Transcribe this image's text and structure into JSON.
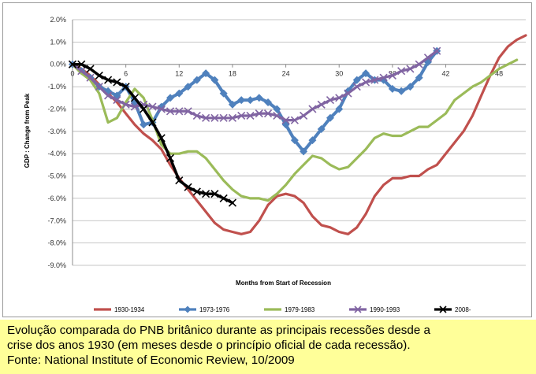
{
  "chart_data": {
    "type": "line",
    "title": "",
    "xlabel": "Months from Start of Recession",
    "ylabel": "GDP : Change from Peak",
    "xlim": [
      0,
      51
    ],
    "ylim": [
      -9,
      2
    ],
    "xticks": [
      0,
      6,
      12,
      18,
      24,
      30,
      36,
      42,
      48
    ],
    "yticks": [
      "2.0%",
      "1.0%",
      "0.0%",
      "-1.0%",
      "-2.0%",
      "-3.0%",
      "-4.0%",
      "-5.0%",
      "-6.0%",
      "-7.0%",
      "-8.0%",
      "-9.0%"
    ],
    "grid": "horizontal",
    "legend_position": "bottom",
    "series": [
      {
        "name": "1930-1934",
        "color": "#c0504d",
        "marker": "none",
        "points": [
          [
            0,
            0
          ],
          [
            1,
            -0.2
          ],
          [
            2,
            -0.5
          ],
          [
            3,
            -0.9
          ],
          [
            4,
            -1.3
          ],
          [
            5,
            -1.7
          ],
          [
            6,
            -2.2
          ],
          [
            7,
            -2.7
          ],
          [
            8,
            -3.1
          ],
          [
            9,
            -3.4
          ],
          [
            10,
            -3.8
          ],
          [
            11,
            -4.5
          ],
          [
            12,
            -5.1
          ],
          [
            13,
            -5.6
          ],
          [
            14,
            -6.1
          ],
          [
            15,
            -6.6
          ],
          [
            16,
            -7.1
          ],
          [
            17,
            -7.4
          ],
          [
            18,
            -7.5
          ],
          [
            19,
            -7.6
          ],
          [
            20,
            -7.5
          ],
          [
            21,
            -7.0
          ],
          [
            22,
            -6.3
          ],
          [
            23,
            -5.9
          ],
          [
            24,
            -5.8
          ],
          [
            25,
            -5.9
          ],
          [
            26,
            -6.2
          ],
          [
            27,
            -6.8
          ],
          [
            28,
            -7.2
          ],
          [
            29,
            -7.3
          ],
          [
            30,
            -7.5
          ],
          [
            31,
            -7.6
          ],
          [
            32,
            -7.3
          ],
          [
            33,
            -6.7
          ],
          [
            34,
            -5.9
          ],
          [
            35,
            -5.4
          ],
          [
            36,
            -5.1
          ],
          [
            37,
            -5.1
          ],
          [
            38,
            -5.0
          ],
          [
            39,
            -5.0
          ],
          [
            40,
            -4.7
          ],
          [
            41,
            -4.5
          ],
          [
            42,
            -4.0
          ],
          [
            43,
            -3.5
          ],
          [
            44,
            -3.0
          ],
          [
            45,
            -2.3
          ],
          [
            46,
            -1.4
          ],
          [
            47,
            -0.5
          ],
          [
            48,
            0.3
          ],
          [
            49,
            0.8
          ],
          [
            50,
            1.1
          ],
          [
            51,
            1.3
          ]
        ]
      },
      {
        "name": "1973-1976",
        "color": "#4f81bd",
        "marker": "diamond",
        "points": [
          [
            0,
            0
          ],
          [
            1,
            -0.3
          ],
          [
            2,
            -0.6
          ],
          [
            3,
            -1.0
          ],
          [
            4,
            -1.2
          ],
          [
            5,
            -1.4
          ],
          [
            6,
            -1.0
          ],
          [
            7,
            -1.7
          ],
          [
            8,
            -2.7
          ],
          [
            9,
            -2.6
          ],
          [
            10,
            -1.9
          ],
          [
            11,
            -1.5
          ],
          [
            12,
            -1.3
          ],
          [
            13,
            -1.0
          ],
          [
            14,
            -0.7
          ],
          [
            15,
            -0.4
          ],
          [
            16,
            -0.7
          ],
          [
            17,
            -1.3
          ],
          [
            18,
            -1.8
          ],
          [
            19,
            -1.6
          ],
          [
            20,
            -1.6
          ],
          [
            21,
            -1.5
          ],
          [
            22,
            -1.7
          ],
          [
            23,
            -2.0
          ],
          [
            24,
            -2.7
          ],
          [
            25,
            -3.4
          ],
          [
            26,
            -3.9
          ],
          [
            27,
            -3.4
          ],
          [
            28,
            -2.9
          ],
          [
            29,
            -2.4
          ],
          [
            30,
            -2.0
          ],
          [
            31,
            -1.2
          ],
          [
            32,
            -0.7
          ],
          [
            33,
            -0.4
          ],
          [
            34,
            -0.7
          ],
          [
            35,
            -0.7
          ],
          [
            36,
            -1.1
          ],
          [
            37,
            -1.2
          ],
          [
            38,
            -1.0
          ],
          [
            39,
            -0.6
          ],
          [
            40,
            0.1
          ],
          [
            41,
            0.6
          ]
        ]
      },
      {
        "name": "1979-1983",
        "color": "#9bbb59",
        "marker": "none",
        "points": [
          [
            0,
            0
          ],
          [
            1,
            -0.4
          ],
          [
            2,
            -0.7
          ],
          [
            3,
            -1.3
          ],
          [
            4,
            -2.6
          ],
          [
            5,
            -2.4
          ],
          [
            6,
            -1.7
          ],
          [
            7,
            -1.1
          ],
          [
            8,
            -1.5
          ],
          [
            9,
            -2.5
          ],
          [
            10,
            -3.6
          ],
          [
            11,
            -4.0
          ],
          [
            12,
            -4.0
          ],
          [
            13,
            -3.9
          ],
          [
            14,
            -3.9
          ],
          [
            15,
            -4.2
          ],
          [
            16,
            -4.7
          ],
          [
            17,
            -5.2
          ],
          [
            18,
            -5.6
          ],
          [
            19,
            -5.9
          ],
          [
            20,
            -6.0
          ],
          [
            21,
            -6.0
          ],
          [
            22,
            -6.1
          ],
          [
            23,
            -5.8
          ],
          [
            24,
            -5.4
          ],
          [
            25,
            -4.9
          ],
          [
            26,
            -4.5
          ],
          [
            27,
            -4.1
          ],
          [
            28,
            -4.2
          ],
          [
            29,
            -4.5
          ],
          [
            30,
            -4.7
          ],
          [
            31,
            -4.6
          ],
          [
            32,
            -4.2
          ],
          [
            33,
            -3.8
          ],
          [
            34,
            -3.3
          ],
          [
            35,
            -3.1
          ],
          [
            36,
            -3.2
          ],
          [
            37,
            -3.2
          ],
          [
            38,
            -3.0
          ],
          [
            39,
            -2.8
          ],
          [
            40,
            -2.8
          ],
          [
            41,
            -2.5
          ],
          [
            42,
            -2.2
          ],
          [
            43,
            -1.6
          ],
          [
            44,
            -1.3
          ],
          [
            45,
            -1.0
          ],
          [
            46,
            -0.8
          ],
          [
            47,
            -0.5
          ],
          [
            48,
            -0.2
          ],
          [
            49,
            0.0
          ],
          [
            50,
            0.2
          ]
        ]
      },
      {
        "name": "1990-1993",
        "color": "#8064a2",
        "marker": "cross",
        "points": [
          [
            0,
            0
          ],
          [
            1,
            -0.3
          ],
          [
            2,
            -0.6
          ],
          [
            3,
            -1.0
          ],
          [
            4,
            -1.4
          ],
          [
            5,
            -1.6
          ],
          [
            6,
            -1.8
          ],
          [
            7,
            -1.9
          ],
          [
            8,
            -1.8
          ],
          [
            9,
            -1.9
          ],
          [
            10,
            -2.0
          ],
          [
            11,
            -2.1
          ],
          [
            12,
            -2.1
          ],
          [
            13,
            -2.1
          ],
          [
            14,
            -2.3
          ],
          [
            15,
            -2.4
          ],
          [
            16,
            -2.4
          ],
          [
            17,
            -2.4
          ],
          [
            18,
            -2.4
          ],
          [
            19,
            -2.3
          ],
          [
            20,
            -2.3
          ],
          [
            21,
            -2.2
          ],
          [
            22,
            -2.2
          ],
          [
            23,
            -2.3
          ],
          [
            24,
            -2.5
          ],
          [
            25,
            -2.5
          ],
          [
            26,
            -2.3
          ],
          [
            27,
            -2.0
          ],
          [
            28,
            -1.8
          ],
          [
            29,
            -1.6
          ],
          [
            30,
            -1.5
          ],
          [
            31,
            -1.3
          ],
          [
            32,
            -1.0
          ],
          [
            33,
            -0.8
          ],
          [
            34,
            -0.7
          ],
          [
            35,
            -0.6
          ],
          [
            36,
            -0.5
          ],
          [
            37,
            -0.3
          ],
          [
            38,
            -0.2
          ],
          [
            39,
            0.0
          ],
          [
            40,
            0.3
          ],
          [
            41,
            0.6
          ]
        ]
      },
      {
        "name": "2008-",
        "color": "#000000",
        "marker": "cross",
        "points": [
          [
            0,
            0
          ],
          [
            1,
            0
          ],
          [
            2,
            -0.2
          ],
          [
            3,
            -0.5
          ],
          [
            4,
            -0.7
          ],
          [
            5,
            -0.8
          ],
          [
            6,
            -1.0
          ],
          [
            7,
            -1.5
          ],
          [
            8,
            -2.0
          ],
          [
            9,
            -2.6
          ],
          [
            10,
            -3.3
          ],
          [
            11,
            -4.2
          ],
          [
            12,
            -5.2
          ],
          [
            13,
            -5.5
          ],
          [
            14,
            -5.7
          ],
          [
            15,
            -5.8
          ],
          [
            16,
            -5.8
          ],
          [
            17,
            -6.0
          ],
          [
            18,
            -6.2
          ]
        ]
      }
    ]
  },
  "caption": {
    "line1": "Evolução comparada do PNB britânico durante as principais  recessões desde a",
    "line2": "crise  dos  anos  1930  (em  meses  desde  o   princípio  oficial de cada recessão).",
    "line3": "Fonte: National Institute of  Economic Review, 10/2009"
  }
}
